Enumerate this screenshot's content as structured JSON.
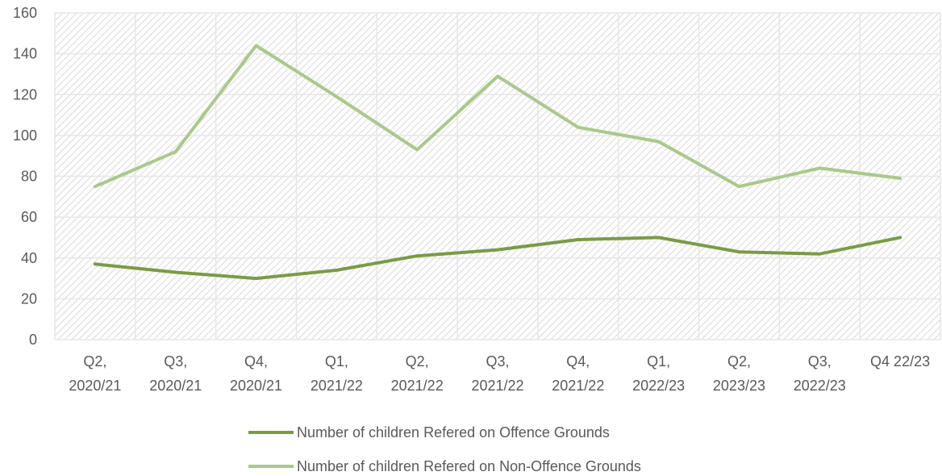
{
  "chart_data": {
    "type": "line",
    "categories": [
      [
        "Q2,",
        "2020/21"
      ],
      [
        "Q3,",
        "2020/21"
      ],
      [
        "Q4,",
        "2020/21"
      ],
      [
        "Q1,",
        "2021/22"
      ],
      [
        "Q2,",
        "2021/22"
      ],
      [
        "Q3,",
        "2021/22"
      ],
      [
        "Q4,",
        "2021/22"
      ],
      [
        "Q1,",
        "2022/23"
      ],
      [
        "Q2,",
        "2023/23"
      ],
      [
        "Q3,",
        "2022/23"
      ],
      [
        "Q4 22/23"
      ]
    ],
    "series": [
      {
        "name": "Number of children Refered on Offence Grounds",
        "color": "#7a9b45",
        "values": [
          37,
          33,
          30,
          34,
          41,
          44,
          49,
          50,
          43,
          42,
          50
        ]
      },
      {
        "name": "Number of children Refered on Non-Offence Grounds",
        "color": "#a9c98a",
        "values": [
          75,
          92,
          144,
          119,
          93,
          129,
          104,
          97,
          75,
          84,
          79
        ]
      }
    ],
    "ylim": [
      0,
      160
    ],
    "yticks": [
      0,
      20,
      40,
      60,
      80,
      100,
      120,
      140,
      160
    ],
    "grid": true,
    "legend_position": "bottom",
    "title": "",
    "xlabel": "",
    "ylabel": ""
  }
}
